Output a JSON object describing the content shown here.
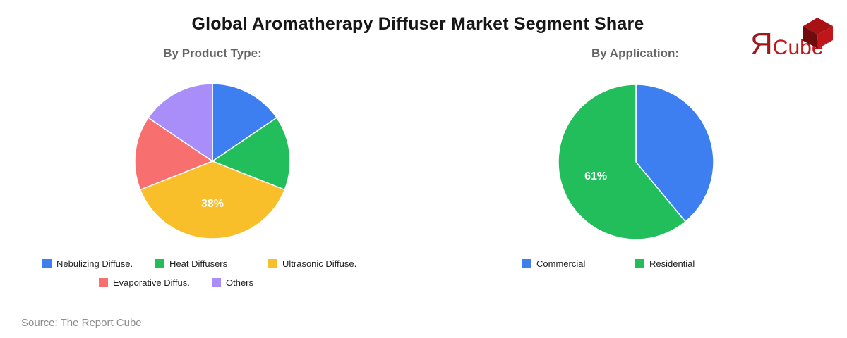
{
  "title": "Global Aromatherapy Diffuser Market Segment Share",
  "source": "Source: The Report Cube",
  "logo": {
    "r_char": "Я",
    "cube_text": "Cube",
    "colors": {
      "r_text": "#9c1a1c",
      "cube_text": "#c3161a",
      "cube_face_top": "#a81215",
      "cube_face_left": "#6f0a0d",
      "cube_face_right": "#c0161a"
    }
  },
  "chart_data": [
    {
      "type": "pie",
      "title": "By Product Type:",
      "labels": [
        "Nebulizing Diffuse.",
        "Heat Diffusers",
        "Ultrasonic Diffuse.",
        "Evaporative Diffus.",
        "Others"
      ],
      "values": [
        15.5,
        15.5,
        38,
        15.5,
        15.5
      ],
      "colors": [
        "#3d7ff0",
        "#22be5b",
        "#f9bf2b",
        "#f7706f",
        "#a98df8"
      ],
      "slice_labels": [
        "",
        "",
        "38%",
        "",
        ""
      ],
      "legend_rows": [
        [
          0,
          1,
          2
        ],
        [
          3,
          4
        ]
      ],
      "start_angle_deg": 0,
      "direction": "clockwise",
      "legend_position": "bottom"
    },
    {
      "type": "pie",
      "title": "By Application:",
      "labels": [
        "Commercial",
        "Residential"
      ],
      "values": [
        39,
        61
      ],
      "colors": [
        "#3d7ff0",
        "#22be5b"
      ],
      "slice_labels": [
        "",
        "61%"
      ],
      "legend_rows": [
        [
          0,
          1
        ]
      ],
      "start_angle_deg": 0,
      "direction": "clockwise",
      "legend_position": "bottom"
    }
  ]
}
